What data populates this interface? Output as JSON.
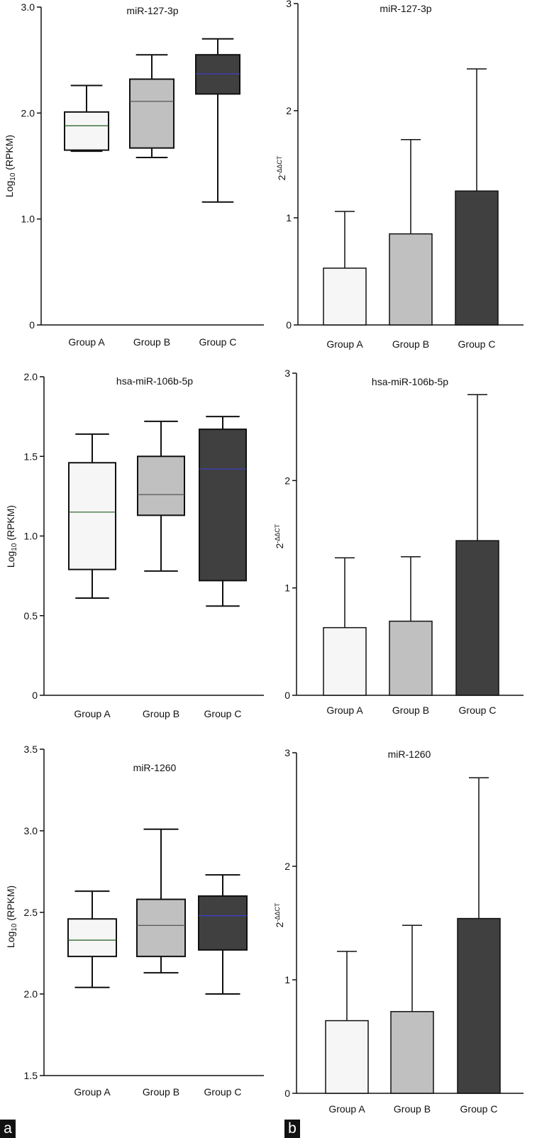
{
  "panel_labels": {
    "a": "a",
    "b": "b"
  },
  "colors": {
    "group_a": "#f6f6f6",
    "group_b": "#c0c0c0",
    "group_c": "#404040",
    "axis": "#111111"
  },
  "chart_data": [
    {
      "type": "box",
      "panel": "a",
      "title": "miR-127-3p",
      "ylabel": "Log10 (RPKM)",
      "ylabel_main": "Log",
      "ylabel_sub": "10",
      "ylabel_rest": " (RPKM)",
      "categories": [
        "Group A",
        "Group B",
        "Group C"
      ],
      "ylim": [
        0,
        3.0
      ],
      "yticks": [
        0,
        1.0,
        2.0,
        3.0
      ],
      "ytick_labels": [
        "0",
        "1.0",
        "2.0",
        "3.0"
      ],
      "boxes": [
        {
          "min": 1.64,
          "q1": 1.65,
          "median": 1.88,
          "q3": 2.01,
          "max": 2.26
        },
        {
          "min": 1.58,
          "q1": 1.67,
          "median": 2.11,
          "q3": 2.32,
          "max": 2.55
        },
        {
          "min": 1.16,
          "q1": 2.18,
          "median": 2.37,
          "q3": 2.55,
          "max": 2.7
        }
      ]
    },
    {
      "type": "bar",
      "panel": "b",
      "title": "miR-127-3p",
      "ylabel": "2-ΔΔCT",
      "ylabel_main": "2",
      "ylabel_sup": "-ΔΔCT",
      "categories": [
        "Group A",
        "Group B",
        "Group C"
      ],
      "ylim": [
        0,
        3
      ],
      "yticks": [
        0,
        1,
        2,
        3
      ],
      "ytick_labels": [
        "0",
        "1",
        "2",
        "3"
      ],
      "values": [
        0.53,
        0.85,
        1.25
      ],
      "errors": [
        0.53,
        0.88,
        1.14
      ]
    },
    {
      "type": "box",
      "panel": "a",
      "title": "hsa-miR-106b-5p",
      "ylabel": "Log10 (RPKM)",
      "ylabel_main": "Log",
      "ylabel_sub": "10",
      "ylabel_rest": " (RPKM)",
      "categories": [
        "Group A",
        "Group B",
        "Group C"
      ],
      "ylim": [
        0,
        2.0
      ],
      "yticks": [
        0,
        0.5,
        1.0,
        1.5,
        2.0
      ],
      "ytick_labels": [
        "0",
        "0.5",
        "1.0",
        "1.5",
        "2.0"
      ],
      "boxes": [
        {
          "min": 0.61,
          "q1": 0.79,
          "median": 1.15,
          "q3": 1.46,
          "max": 1.64
        },
        {
          "min": 0.78,
          "q1": 1.13,
          "median": 1.26,
          "q3": 1.5,
          "max": 1.72
        },
        {
          "min": 0.56,
          "q1": 0.72,
          "median": 1.42,
          "q3": 1.67,
          "max": 1.75
        }
      ]
    },
    {
      "type": "bar",
      "panel": "b",
      "title": "hsa-miR-106b-5p",
      "ylabel": "2-ΔΔCT",
      "ylabel_main": "2",
      "ylabel_sup": "-ΔΔCT",
      "categories": [
        "Group A",
        "Group B",
        "Group C"
      ],
      "ylim": [
        0,
        3
      ],
      "yticks": [
        0,
        1,
        2,
        3
      ],
      "ytick_labels": [
        "0",
        "1",
        "2",
        "3"
      ],
      "values": [
        0.63,
        0.69,
        1.44
      ],
      "errors": [
        0.65,
        0.6,
        1.36
      ]
    },
    {
      "type": "box",
      "panel": "a",
      "title": "miR-1260",
      "ylabel": "Log10 (RPKM)",
      "ylabel_main": "Log",
      "ylabel_sub": "10",
      "ylabel_rest": " (RPKM)",
      "categories": [
        "Group A",
        "Group B",
        "Group C"
      ],
      "ylim": [
        1.5,
        3.5
      ],
      "yticks": [
        1.5,
        2.0,
        2.5,
        3.0,
        3.5
      ],
      "ytick_labels": [
        "1.5",
        "2.0",
        "2.5",
        "3.0",
        "3.5"
      ],
      "boxes": [
        {
          "min": 2.04,
          "q1": 2.23,
          "median": 2.33,
          "q3": 2.46,
          "max": 2.63
        },
        {
          "min": 2.13,
          "q1": 2.23,
          "median": 2.42,
          "q3": 2.58,
          "max": 3.01
        },
        {
          "min": 2.0,
          "q1": 2.27,
          "median": 2.48,
          "q3": 2.6,
          "max": 2.73
        }
      ]
    },
    {
      "type": "bar",
      "panel": "b",
      "title": "miR-1260",
      "ylabel": "2-ΔΔCT",
      "ylabel_main": "2",
      "ylabel_sup": "-ΔΔCT",
      "categories": [
        "Group A",
        "Group B",
        "Group C"
      ],
      "ylim": [
        0,
        3
      ],
      "yticks": [
        0,
        1,
        2,
        3
      ],
      "ytick_labels": [
        "0",
        "1",
        "2",
        "3"
      ],
      "values": [
        0.64,
        0.72,
        1.54
      ],
      "errors": [
        0.61,
        0.76,
        1.24
      ]
    }
  ]
}
